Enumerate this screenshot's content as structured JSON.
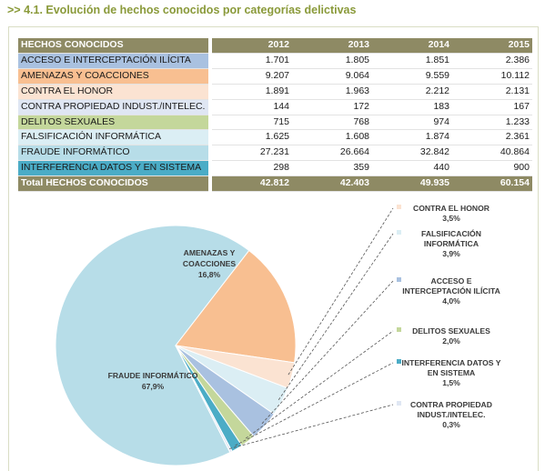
{
  "heading": ">>  4.1. Evolución de hechos conocidos por categorías delictivas",
  "table": {
    "header": [
      "HECHOS CONOCIDOS",
      "2012",
      "2013",
      "2014",
      "2015"
    ],
    "rows": [
      {
        "label": "ACCESO  E INTERCEPTACIÓN ILÍCITA",
        "values": [
          "1.701",
          "1.805",
          "1.851",
          "2.386"
        ],
        "color": "#a9c1e0"
      },
      {
        "label": "AMENAZAS Y COACCIONES",
        "values": [
          "9.207",
          "9.064",
          "9.559",
          "10.112"
        ],
        "color": "#f8bf91"
      },
      {
        "label": "CONTRA EL HONOR",
        "values": [
          "1.891",
          "1.963",
          "2.212",
          "2.131"
        ],
        "color": "#fbe3d2"
      },
      {
        "label": "CONTRA PROPIEDAD INDUST./INTELEC.",
        "values": [
          "144",
          "172",
          "183",
          "167"
        ],
        "color": "#dfe6f3"
      },
      {
        "label": "DELITOS SEXUALES",
        "values": [
          "715",
          "768",
          "974",
          "1.233"
        ],
        "color": "#c4d79b"
      },
      {
        "label": "FALSIFICACIÓN INFORMÁTICA",
        "values": [
          "1.625",
          "1.608",
          "1.874",
          "2.361"
        ],
        "color": "#dbeef4"
      },
      {
        "label": "FRAUDE INFORMÁTICO",
        "values": [
          "27.231",
          "26.664",
          "32.842",
          "40.864"
        ],
        "color": "#b7dde8"
      },
      {
        "label": "INTERFERENCIA DATOS Y EN SISTEMA",
        "values": [
          "298",
          "359",
          "440",
          "900"
        ],
        "color": "#4bacc6"
      }
    ],
    "total": {
      "label": "Total HECHOS CONOCIDOS",
      "values": [
        "42.812",
        "42.403",
        "49.935",
        "60.154"
      ]
    }
  },
  "chart_data": {
    "type": "pie",
    "slices": [
      {
        "label": "FRAUDE INFORMÁTICO",
        "value": 67.9,
        "pct": "67,9%",
        "color": "#b7dde8"
      },
      {
        "label": "AMENAZAS Y COACCIONES",
        "value": 16.8,
        "pct": "16,8%",
        "color": "#f8bf91"
      },
      {
        "label": "CONTRA EL HONOR",
        "value": 3.5,
        "pct": "3,5%",
        "color": "#fbe3d2"
      },
      {
        "label": "FALSIFICACIÓN INFORMÁTICA",
        "value": 3.9,
        "pct": "3,9%",
        "color": "#dbeef4"
      },
      {
        "label": "ACCESO  E INTERCEPTACIÓN ILÍCITA",
        "value": 4.0,
        "pct": "4,0%",
        "color": "#a9c1e0"
      },
      {
        "label": "DELITOS SEXUALES",
        "value": 2.0,
        "pct": "2,0%",
        "color": "#c4d79b"
      },
      {
        "label": "INTERFERENCIA DATOS Y EN SISTEMA",
        "value": 1.5,
        "pct": "1,5%",
        "color": "#4bacc6"
      },
      {
        "label": "CONTRA PROPIEDAD INDUST./INTELEC.",
        "value": 0.3,
        "pct": "0,3%",
        "color": "#dfe6f3"
      }
    ]
  }
}
